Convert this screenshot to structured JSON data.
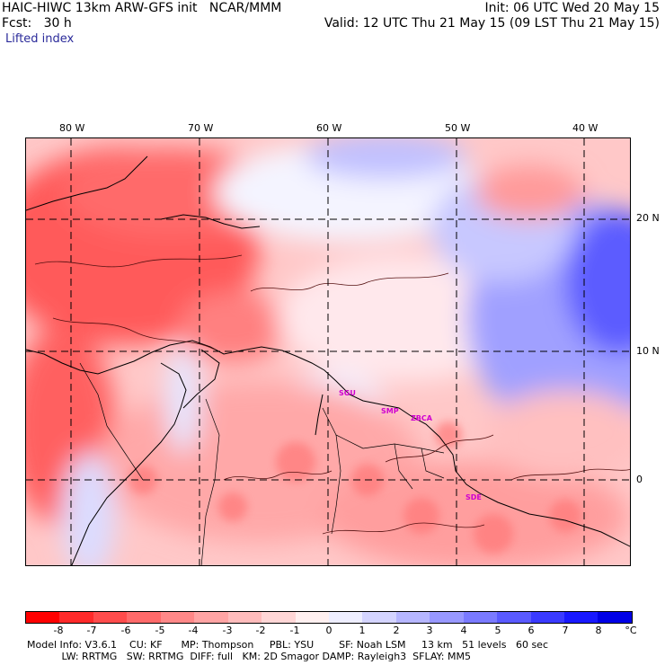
{
  "header": {
    "title": "HAIC-HIWC 13km ARW-GFS init   NCAR/MMM",
    "fcst": "Fcst:   30 h",
    "field": "Lifted index",
    "init": "Init: 06 UTC Wed 20 May 15",
    "valid": "Valid: 12 UTC Thu 21 May 15 (09 LST Thu 21 May 15)"
  },
  "longitude_labels": [
    "80 W",
    "70 W",
    "60 W",
    "50 W",
    "40 W"
  ],
  "latitude_labels": [
    "20 N",
    "10 N",
    "0"
  ],
  "colorbar": {
    "labels": [
      "-8",
      "-7",
      "-6",
      "-5",
      "-4",
      "-3",
      "-2",
      "-1",
      "0",
      "1",
      "2",
      "3",
      "4",
      "5",
      "6",
      "7",
      "8"
    ],
    "unit": "°C",
    "colors": [
      "#ff0000",
      "#ff2a2a",
      "#ff4c4c",
      "#ff6a6a",
      "#ff8888",
      "#ffa4a4",
      "#ffbcbc",
      "#ffd6d6",
      "#fff0f0",
      "#eeeeff",
      "#d4d4ff",
      "#b6b6ff",
      "#9898ff",
      "#7a7aff",
      "#5a5aff",
      "#3a3aff",
      "#1818ff",
      "#0000e6"
    ]
  },
  "cities": [
    "SGU",
    "SMP",
    "ZBCA",
    "SDE"
  ],
  "footer": {
    "line1": "Model Info: V3.6.1    CU: KF      MP: Thompson     PBL: YSU        SF: Noah LSM     13 km   51 levels   60 sec",
    "line2": "           LW: RRTMG   SW: RRTMG  DIFF: full   KM: 2D Smagor DAMP: Rayleigh3  SFLAY: MM5"
  }
}
